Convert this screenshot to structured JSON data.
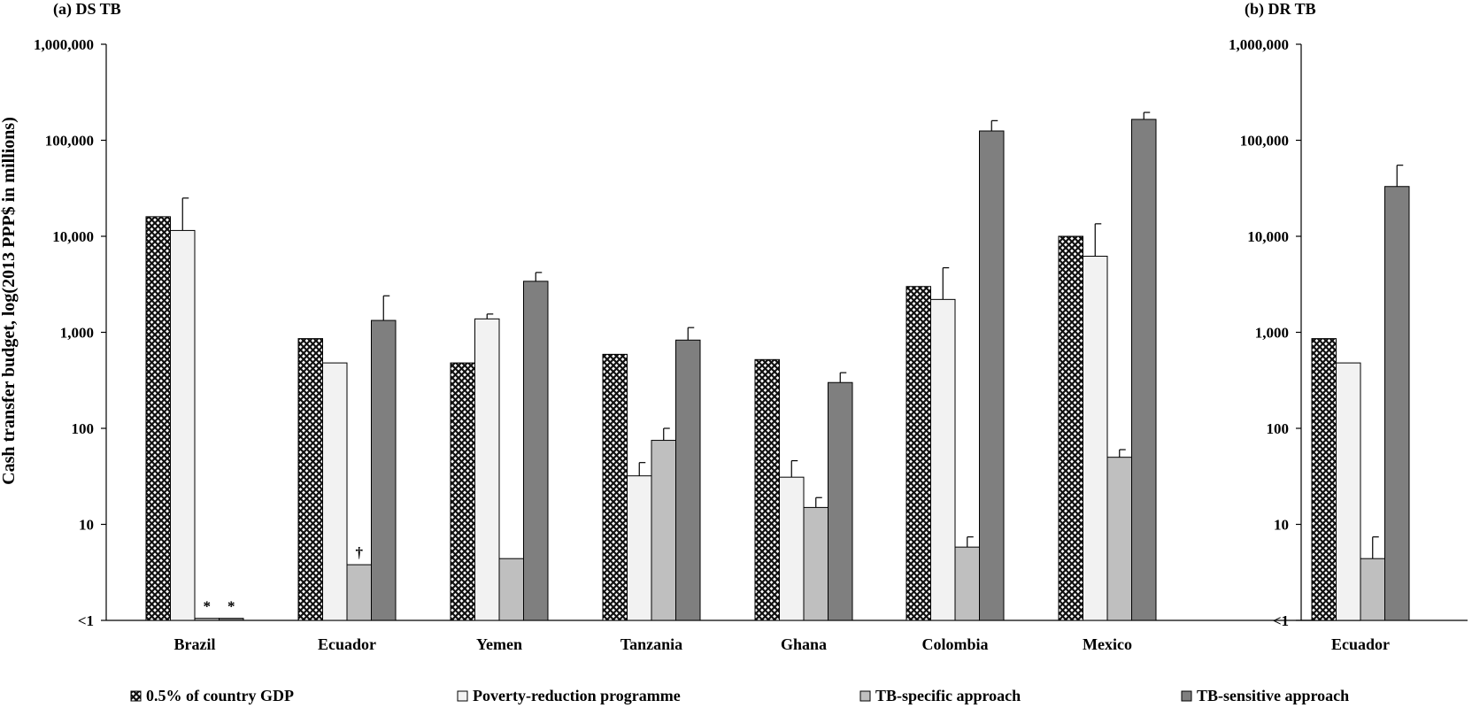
{
  "chart_data": {
    "type": "bar",
    "ylabel": "Cash transfer budget, log(2013 PPP$ in millions)",
    "yscale": "log",
    "ylim": [
      1,
      1000000
    ],
    "y_ticks": [
      {
        "value": 1,
        "label": "<1"
      },
      {
        "value": 10,
        "label": "10"
      },
      {
        "value": 100,
        "label": "100"
      },
      {
        "value": 1000,
        "label": "1,000"
      },
      {
        "value": 10000,
        "label": "10,000"
      },
      {
        "value": 100000,
        "label": "100,000"
      },
      {
        "value": 1000000,
        "label": "1,000,000"
      }
    ],
    "legend": {
      "placement": "bottom",
      "entries": [
        {
          "name": "0.5% of country GDP",
          "pattern": "crosshatch-dark"
        },
        {
          "name": "Poverty-reduction programme",
          "color": "#f2f2f2"
        },
        {
          "name": "TB-specific approach",
          "color": "#bfbfbf"
        },
        {
          "name": "TB-sensitive approach",
          "color": "#7f7f7f"
        }
      ]
    },
    "panels": [
      {
        "title": "(a) DS TB",
        "categories": [
          "Brazil",
          "Ecuador",
          "Yemen",
          "Tanzania",
          "Ghana",
          "Colombia",
          "Mexico"
        ],
        "series": [
          {
            "name": "0.5% of country GDP",
            "values": [
              16000,
              860,
              480,
              590,
              520,
              3000,
              10000
            ],
            "err_hi": [
              null,
              null,
              null,
              null,
              null,
              null,
              null
            ]
          },
          {
            "name": "Poverty-reduction programme",
            "values": [
              11500,
              480,
              1380,
              32,
              31,
              2200,
              6200
            ],
            "err_hi": [
              25000,
              null,
              1550,
              44,
              46,
              4700,
              13500
            ]
          },
          {
            "name": "TB-specific approach",
            "values": [
              1.05,
              3.8,
              4.4,
              75,
              15,
              5.8,
              50
            ],
            "err_hi": [
              null,
              null,
              null,
              100,
              19,
              7.4,
              60
            ]
          },
          {
            "name": "TB-sensitive approach",
            "values": [
              1.05,
              1330,
              3400,
              830,
              300,
              125000,
              165000
            ],
            "err_hi": [
              null,
              2400,
              4200,
              1120,
              380,
              160000,
              195000
            ]
          }
        ],
        "annotations": [
          {
            "category": "Brazil",
            "series": "TB-specific approach",
            "text": "*"
          },
          {
            "category": "Brazil",
            "series": "TB-sensitive approach",
            "text": "*"
          },
          {
            "category": "Ecuador",
            "series": "TB-specific approach",
            "text": "†"
          }
        ]
      },
      {
        "title": "(b) DR TB",
        "categories": [
          "Ecuador"
        ],
        "series": [
          {
            "name": "0.5% of country GDP",
            "values": [
              860
            ],
            "err_hi": [
              null
            ]
          },
          {
            "name": "Poverty-reduction programme",
            "values": [
              480
            ],
            "err_hi": [
              null
            ]
          },
          {
            "name": "TB-specific approach",
            "values": [
              4.4
            ],
            "err_hi": [
              7.4
            ]
          },
          {
            "name": "TB-sensitive approach",
            "values": [
              33000
            ],
            "err_hi": [
              55000
            ]
          }
        ],
        "annotations": []
      }
    ]
  }
}
